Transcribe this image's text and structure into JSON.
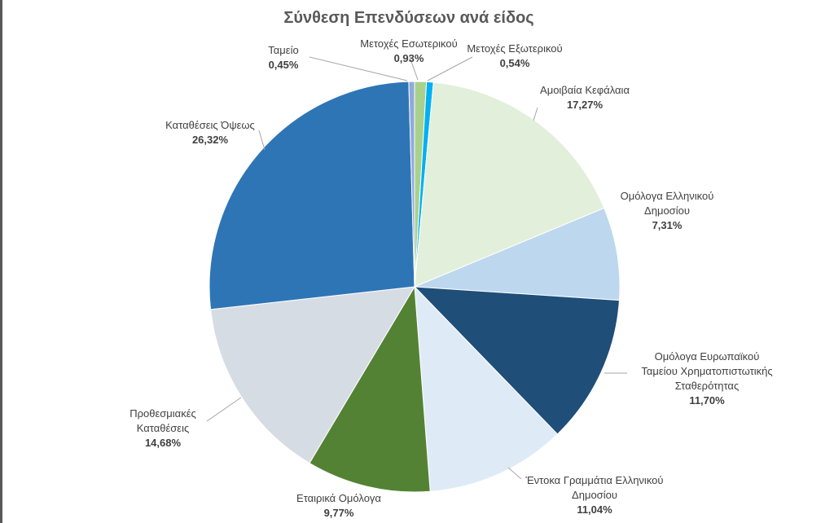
{
  "chart_data": {
    "type": "pie",
    "title": "Σύνθεση Επενδύσεων ανά είδος",
    "slices": [
      {
        "name": "Μετοχές Εσωτερικού",
        "value": 0.93,
        "label": "0,93%",
        "color": "#a9d18e"
      },
      {
        "name": "Μετοχές Εξωτερικού",
        "value": 0.54,
        "label": "0,54%",
        "color": "#00b0f0"
      },
      {
        "name": "Αμοιβαία Κεφάλαια",
        "value": 17.27,
        "label": "17,27%",
        "color": "#e2efda"
      },
      {
        "name": "Ομόλογα Ελληνικού Δημοσίου",
        "value": 7.31,
        "label": "7,31%",
        "color": "#bdd7ee"
      },
      {
        "name": "Ομόλογα Ευρωπαϊκού Ταμείου Χρηματοπιστωτικής Σταθερότητας",
        "value": 11.7,
        "label": "11,70%",
        "color": "#1f4e79"
      },
      {
        "name": "Έντοκα Γραμμάτια Ελληνικού Δημοσίου",
        "value": 11.04,
        "label": "11,04%",
        "color": "#deebf7"
      },
      {
        "name": "Εταιρικά Ομόλογα",
        "value": 9.77,
        "label": "9,77%",
        "color": "#548235"
      },
      {
        "name": "Προθεσμιακές Καταθέσεις",
        "value": 14.68,
        "label": "14,68%",
        "color": "#d6dce4"
      },
      {
        "name": "Καταθέσεις Όψεως",
        "value": 26.32,
        "label": "26,32%",
        "color": "#2e75b6"
      },
      {
        "name": "Ταμείο",
        "value": 0.45,
        "label": "0,45%",
        "color": "#8faadc"
      }
    ],
    "legend": "none",
    "data_labels": "outside with leader lines"
  }
}
